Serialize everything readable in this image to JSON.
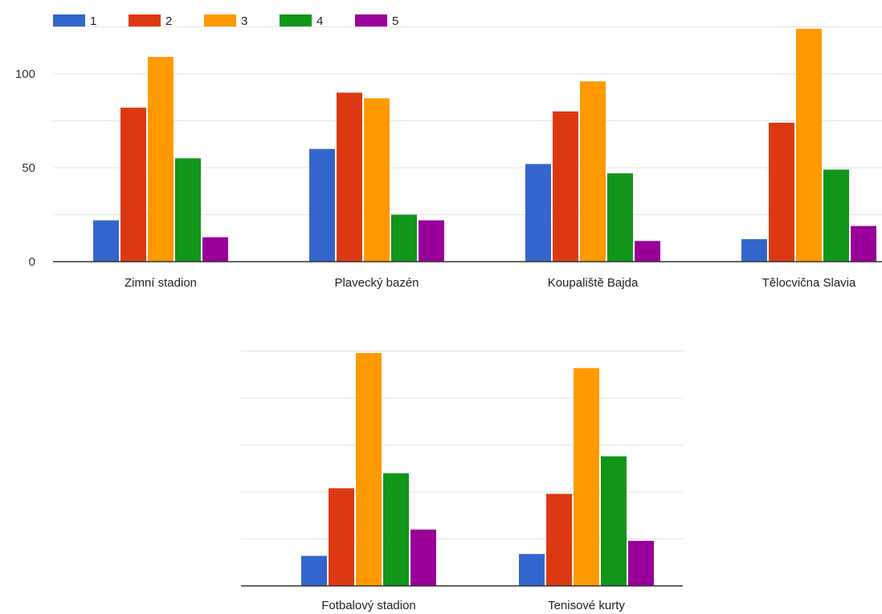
{
  "chart_data": {
    "type": "bar",
    "legend": {
      "position": "top-left",
      "entries": [
        "1",
        "2",
        "3",
        "4",
        "5"
      ]
    },
    "colors": [
      "#3366cc",
      "#dc3912",
      "#ff9900",
      "#109618",
      "#990099"
    ],
    "panels": [
      {
        "categories": [
          "Zimní stadion",
          "Plavecký bazén",
          "Koupaliště Bajda",
          "Tělocvična Slavia"
        ],
        "series": [
          {
            "name": "1",
            "values": [
              22,
              60,
              52,
              12
            ]
          },
          {
            "name": "2",
            "values": [
              82,
              90,
              80,
              74
            ]
          },
          {
            "name": "3",
            "values": [
              109,
              87,
              96,
              124
            ]
          },
          {
            "name": "4",
            "values": [
              55,
              25,
              47,
              49
            ]
          },
          {
            "name": "5",
            "values": [
              13,
              22,
              11,
              19
            ]
          }
        ],
        "yticks": [
          "0",
          "50",
          "100"
        ],
        "ylim": [
          0,
          125
        ],
        "grid": true
      },
      {
        "categories": [
          "Fotbalový stadion",
          "Tenisové kurty"
        ],
        "series": [
          {
            "name": "1",
            "values": [
              16,
              17
            ]
          },
          {
            "name": "2",
            "values": [
              52,
              49
            ]
          },
          {
            "name": "3",
            "values": [
              124,
              116
            ]
          },
          {
            "name": "4",
            "values": [
              60,
              69
            ]
          },
          {
            "name": "5",
            "values": [
              30,
              24
            ]
          }
        ],
        "yticks": [],
        "ylim": [
          0,
          125
        ],
        "grid": true
      }
    ]
  }
}
